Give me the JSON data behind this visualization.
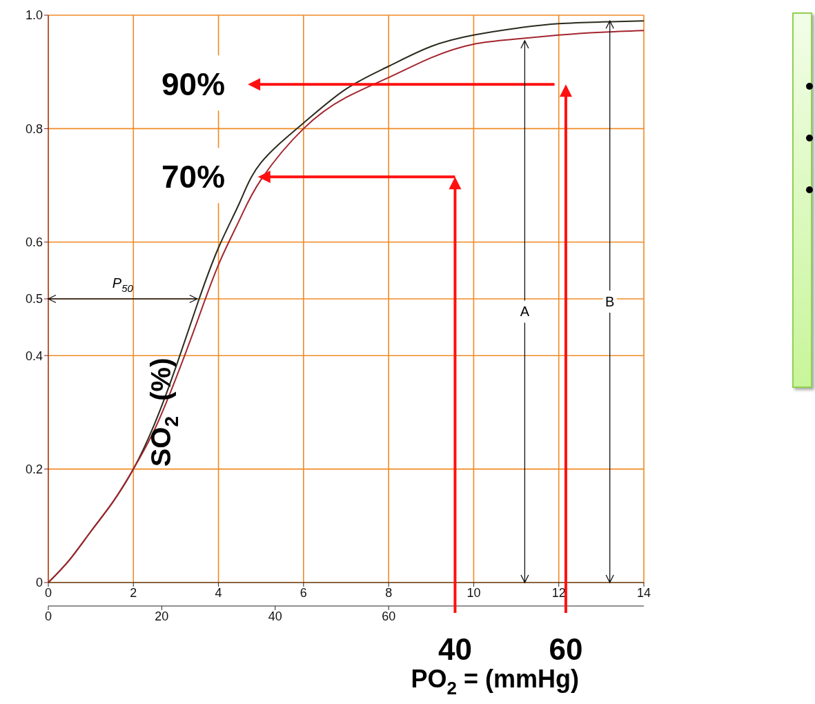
{
  "chart_data": {
    "type": "line",
    "ylabel": "SO$_{2}$  (%)",
    "x2label": "PO$_{2}$ = (mmHg)",
    "x": [
      0,
      0.5,
      1,
      1.5,
      2,
      2.5,
      3,
      3.5,
      4,
      4.5,
      5,
      6,
      7,
      8,
      9,
      10,
      11,
      12,
      13,
      14
    ],
    "series": [
      {
        "color": "#2a2a1e",
        "values": [
          0,
          0.04,
          0.09,
          0.14,
          0.2,
          0.28,
          0.38,
          0.49,
          0.59,
          0.67,
          0.74,
          0.81,
          0.87,
          0.91,
          0.945,
          0.965,
          0.977,
          0.985,
          0.988,
          0.99
        ]
      },
      {
        "color": "#a3262e",
        "values": [
          0,
          0.04,
          0.09,
          0.14,
          0.2,
          0.27,
          0.36,
          0.46,
          0.56,
          0.64,
          0.71,
          0.8,
          0.855,
          0.89,
          0.925,
          0.949,
          0.958,
          0.965,
          0.97,
          0.973
        ]
      }
    ],
    "xlim": [
      0,
      14
    ],
    "xticks": [
      0,
      2,
      4,
      6,
      8,
      10,
      12,
      14
    ],
    "x2lim": [
      0,
      105
    ],
    "x2ticks": [
      0,
      20,
      40,
      60
    ],
    "ylim": [
      0,
      1
    ],
    "yticks": [
      0,
      0.2,
      0.4,
      0.5,
      0.6,
      0.8,
      {
        "value": 1,
        "label": "1.0"
      }
    ],
    "grid": true,
    "annotations": [
      "70%",
      "90%",
      "40",
      "60",
      "P$_{50}$",
      {
        "text": "A",
        "x": 11.2,
        "y": 0.955
      },
      {
        "text": "B",
        "x": 13.2,
        "y": 0.99
      }
    ]
  }
}
